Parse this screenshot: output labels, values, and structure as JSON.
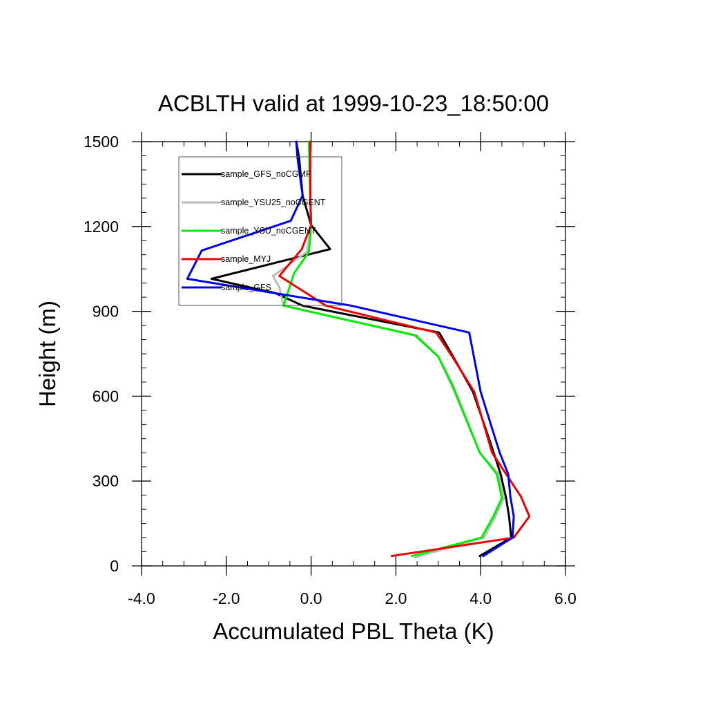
{
  "chart_data": {
    "type": "line",
    "title": "ACBLTH valid at 1999-10-23_18:50:00",
    "xlabel": "Accumulated PBL Theta (K)",
    "ylabel": "Height (m)",
    "xlim": [
      -4.0,
      6.0
    ],
    "ylim": [
      0,
      1500
    ],
    "xticks": [
      "-4.0",
      "-2.0",
      "0.0",
      "2.0",
      "4.0",
      "6.0"
    ],
    "yticks": [
      "0",
      "300",
      "600",
      "900",
      "1200",
      "1500"
    ],
    "xtick_values": [
      -4,
      -2,
      0,
      2,
      4,
      6
    ],
    "ytick_values": [
      0,
      300,
      600,
      900,
      1200,
      1500
    ],
    "legend": "top-left",
    "grid": false,
    "series": [
      {
        "name": "sample_GFS_noCGMF",
        "color": "#000000",
        "points": [
          [
            3.98,
            35
          ],
          [
            4.72,
            100
          ],
          [
            4.67,
            175
          ],
          [
            4.6,
            240
          ],
          [
            4.47,
            325
          ],
          [
            4.22,
            440
          ],
          [
            3.82,
            615
          ],
          [
            3.37,
            735
          ],
          [
            3.02,
            825
          ],
          [
            -0.2,
            920
          ],
          [
            -0.85,
            965
          ],
          [
            -2.35,
            1015
          ],
          [
            0.45,
            1120
          ],
          [
            0.0,
            1205
          ],
          [
            -0.2,
            1310
          ],
          [
            -0.28,
            1440
          ],
          [
            -0.35,
            1500
          ]
        ]
      },
      {
        "name": "sample_YSU25_noCGENT",
        "color": "#bbbbbb",
        "points": [
          [
            2.45,
            30
          ],
          [
            4.08,
            100
          ],
          [
            4.35,
            175
          ],
          [
            4.55,
            240
          ],
          [
            4.42,
            325
          ],
          [
            3.98,
            400
          ],
          [
            3.32,
            635
          ],
          [
            3.0,
            740
          ],
          [
            2.5,
            815
          ],
          [
            -0.65,
            920
          ],
          [
            -0.75,
            985
          ],
          [
            -0.9,
            1025
          ],
          [
            -0.1,
            1110
          ],
          [
            0.0,
            1205
          ],
          [
            -0.02,
            1310
          ],
          [
            -0.05,
            1500
          ]
        ]
      },
      {
        "name": "sample_YSU_noCGENT",
        "color": "#00ee00",
        "points": [
          [
            2.38,
            35
          ],
          [
            4.02,
            100
          ],
          [
            4.3,
            175
          ],
          [
            4.5,
            240
          ],
          [
            4.38,
            325
          ],
          [
            3.98,
            400
          ],
          [
            3.35,
            635
          ],
          [
            3.0,
            740
          ],
          [
            2.45,
            815
          ],
          [
            -0.65,
            920
          ],
          [
            -0.4,
            1035
          ],
          [
            -0.05,
            1110
          ],
          [
            0.0,
            1205
          ],
          [
            -0.02,
            1310
          ],
          [
            -0.05,
            1500
          ]
        ]
      },
      {
        "name": "sample_MYJ",
        "color": "#ee0000",
        "points": [
          [
            1.9,
            35
          ],
          [
            4.78,
            100
          ],
          [
            5.15,
            175
          ],
          [
            4.95,
            245
          ],
          [
            4.6,
            325
          ],
          [
            4.27,
            400
          ],
          [
            3.85,
            615
          ],
          [
            3.35,
            735
          ],
          [
            2.95,
            825
          ],
          [
            0.35,
            920
          ],
          [
            -0.75,
            1025
          ],
          [
            -0.22,
            1120
          ],
          [
            0.0,
            1205
          ],
          [
            -0.02,
            1310
          ],
          [
            -0.02,
            1500
          ]
        ]
      },
      {
        "name": "sample_GFS",
        "color": "#0000ee",
        "points": [
          [
            4.06,
            35
          ],
          [
            4.75,
            100
          ],
          [
            4.78,
            175
          ],
          [
            4.7,
            245
          ],
          [
            4.65,
            325
          ],
          [
            4.45,
            400
          ],
          [
            4.0,
            615
          ],
          [
            3.73,
            825
          ],
          [
            0.95,
            920
          ],
          [
            -2.92,
            1015
          ],
          [
            -2.58,
            1115
          ],
          [
            -0.48,
            1220
          ],
          [
            -0.2,
            1310
          ],
          [
            -0.32,
            1440
          ],
          [
            -0.35,
            1500
          ]
        ]
      }
    ]
  }
}
